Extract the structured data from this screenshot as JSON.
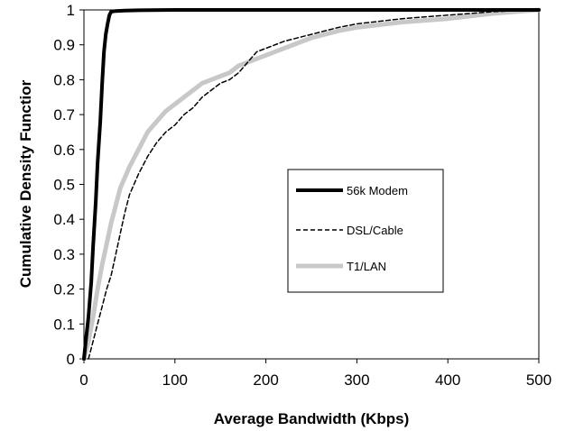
{
  "chart_data": {
    "type": "line",
    "title": "",
    "xlabel": "Average Bandwidth (Kbps)",
    "ylabel": "Cumulative Density Functior",
    "xlim": [
      0,
      500
    ],
    "ylim": [
      0,
      1
    ],
    "xticks": [
      "0",
      "100",
      "200",
      "300",
      "400",
      "500"
    ],
    "yticks": [
      "0",
      "0.1",
      "0.2",
      "0.3",
      "0.4",
      "0.5",
      "0.6",
      "0.7",
      "0.8",
      "0.9",
      "1"
    ],
    "grid": false,
    "legend_position": "center-right",
    "series": [
      {
        "name": "56k Modem",
        "color": "#000000",
        "style": "solid-thick",
        "x": [
          0,
          2,
          5,
          8,
          10,
          13,
          15,
          18,
          20,
          22,
          24,
          26,
          28,
          30,
          35,
          45,
          60,
          100,
          500
        ],
        "y": [
          0,
          0.05,
          0.12,
          0.22,
          0.32,
          0.45,
          0.56,
          0.68,
          0.79,
          0.88,
          0.93,
          0.96,
          0.985,
          0.995,
          0.997,
          0.998,
          0.999,
          1.0,
          1.0
        ]
      },
      {
        "name": "DSL/Cable",
        "color": "#000000",
        "style": "dashed",
        "x": [
          5,
          10,
          15,
          20,
          25,
          30,
          35,
          40,
          45,
          50,
          60,
          70,
          80,
          90,
          100,
          110,
          120,
          130,
          140,
          150,
          160,
          170,
          180,
          190,
          200,
          220,
          250,
          280,
          300,
          350,
          400,
          450,
          500
        ],
        "y": [
          0,
          0.05,
          0.1,
          0.15,
          0.2,
          0.24,
          0.3,
          0.36,
          0.42,
          0.47,
          0.53,
          0.58,
          0.62,
          0.65,
          0.67,
          0.7,
          0.72,
          0.75,
          0.77,
          0.79,
          0.8,
          0.82,
          0.85,
          0.88,
          0.89,
          0.91,
          0.93,
          0.95,
          0.96,
          0.975,
          0.985,
          0.995,
          1.0
        ]
      },
      {
        "name": "T1/LAN",
        "color": "#c8c8c8",
        "style": "thick-gray",
        "x": [
          0,
          5,
          10,
          15,
          20,
          25,
          30,
          35,
          40,
          45,
          50,
          60,
          70,
          80,
          90,
          100,
          110,
          120,
          130,
          140,
          150,
          160,
          170,
          180,
          190,
          200,
          220,
          250,
          280,
          300,
          350,
          400,
          450,
          500
        ],
        "y": [
          0,
          0.05,
          0.12,
          0.2,
          0.27,
          0.33,
          0.39,
          0.44,
          0.49,
          0.52,
          0.55,
          0.6,
          0.65,
          0.68,
          0.71,
          0.73,
          0.75,
          0.77,
          0.79,
          0.8,
          0.81,
          0.82,
          0.84,
          0.85,
          0.86,
          0.87,
          0.89,
          0.92,
          0.94,
          0.95,
          0.965,
          0.975,
          0.99,
          1.0
        ]
      }
    ]
  }
}
